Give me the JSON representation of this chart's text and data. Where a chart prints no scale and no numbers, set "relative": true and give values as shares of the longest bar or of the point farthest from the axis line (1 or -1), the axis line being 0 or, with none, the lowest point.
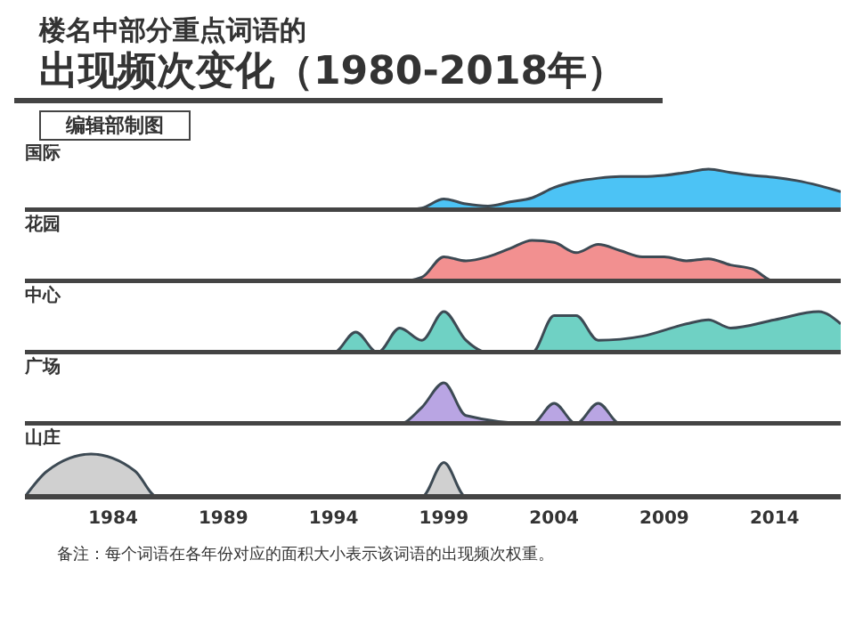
{
  "chart_data": [
    {
      "type": "area",
      "title": "楼名中部分重点词语的",
      "subtitle": "出现频次变化（1980-2018年）",
      "annotations": [
        "编辑部制图"
      ],
      "relative": true,
      "xlim": [
        1980,
        2017
      ],
      "tick_labels": false,
      "x": [
        1980,
        1997,
        1998,
        1999,
        2000,
        2001,
        2002,
        2003,
        2004,
        2005,
        2006,
        2007,
        2008,
        2009,
        2010,
        2011,
        2012,
        2013,
        2014,
        2015,
        2016,
        2017
      ],
      "series": [
        {
          "name": "国际",
          "color": "#4cc3f5",
          "values": [
            0,
            0,
            0.05,
            0.27,
            0.15,
            0.1,
            0.2,
            0.3,
            0.55,
            0.7,
            0.78,
            0.82,
            0.82,
            0.85,
            0.92,
            1,
            0.92,
            0.85,
            0.8,
            0.72,
            0.6,
            0.45
          ]
        }
      ]
    },
    {
      "type": "area",
      "relative": true,
      "xlim": [
        1980,
        2017
      ],
      "tick_labels": false,
      "x": [
        1980,
        1997,
        1998,
        1999,
        2000,
        2001,
        2002,
        2003,
        2004,
        2005,
        2006,
        2007,
        2008,
        2009,
        2010,
        2011,
        2012,
        2013,
        2014,
        2017
      ],
      "series": [
        {
          "name": "花园",
          "color": "#f29090",
          "values": [
            0,
            0,
            0.1,
            0.6,
            0.5,
            0.6,
            0.8,
            1,
            0.95,
            0.7,
            0.9,
            0.75,
            0.6,
            0.6,
            0.5,
            0.55,
            0.4,
            0.3,
            0,
            0
          ]
        }
      ]
    },
    {
      "type": "area",
      "relative": true,
      "xlim": [
        1980,
        2017
      ],
      "tick_labels": false,
      "x": [
        1980,
        1994,
        1995,
        1996,
        1997,
        1998,
        1999,
        2000,
        2001,
        2003,
        2004,
        2005,
        2006,
        2008,
        2010,
        2011,
        2012,
        2014,
        2016,
        2017
      ],
      "series": [
        {
          "name": "中心",
          "color": "#6fd1c4",
          "values": [
            0,
            0,
            0.5,
            0,
            0.6,
            0.3,
            1,
            0.3,
            0,
            0,
            0.9,
            0.9,
            0.3,
            0.4,
            0.7,
            0.8,
            0.6,
            0.8,
            1,
            0.7
          ]
        }
      ]
    },
    {
      "type": "area",
      "relative": true,
      "xlim": [
        1980,
        2017
      ],
      "tick_labels": false,
      "x": [
        1980,
        1997,
        1998,
        1999,
        2000,
        2003,
        2004,
        2005,
        2006,
        2007,
        2017
      ],
      "series": [
        {
          "name": "广场",
          "color": "#b9a5e3",
          "values": [
            0,
            0,
            0.4,
            1,
            0.2,
            0,
            0.5,
            0,
            0.5,
            0,
            0
          ]
        }
      ]
    },
    {
      "type": "area",
      "relative": true,
      "xlim": [
        1980,
        2017
      ],
      "tick_labels": "x",
      "xticks": [
        1984,
        1989,
        1994,
        1999,
        2004,
        2009,
        2014
      ],
      "annotations": [
        "备注：每个词语在各年份对应的面积大小表示该词语的出现频次权重。"
      ],
      "x": [
        1980,
        1981,
        1983,
        1985,
        1986,
        1998,
        1999,
        2000,
        2017
      ],
      "series": [
        {
          "name": "山庄",
          "color": "#d0d0d0",
          "values": [
            0,
            0.6,
            1,
            0.6,
            0,
            0,
            0.8,
            0,
            0
          ]
        }
      ]
    }
  ]
}
